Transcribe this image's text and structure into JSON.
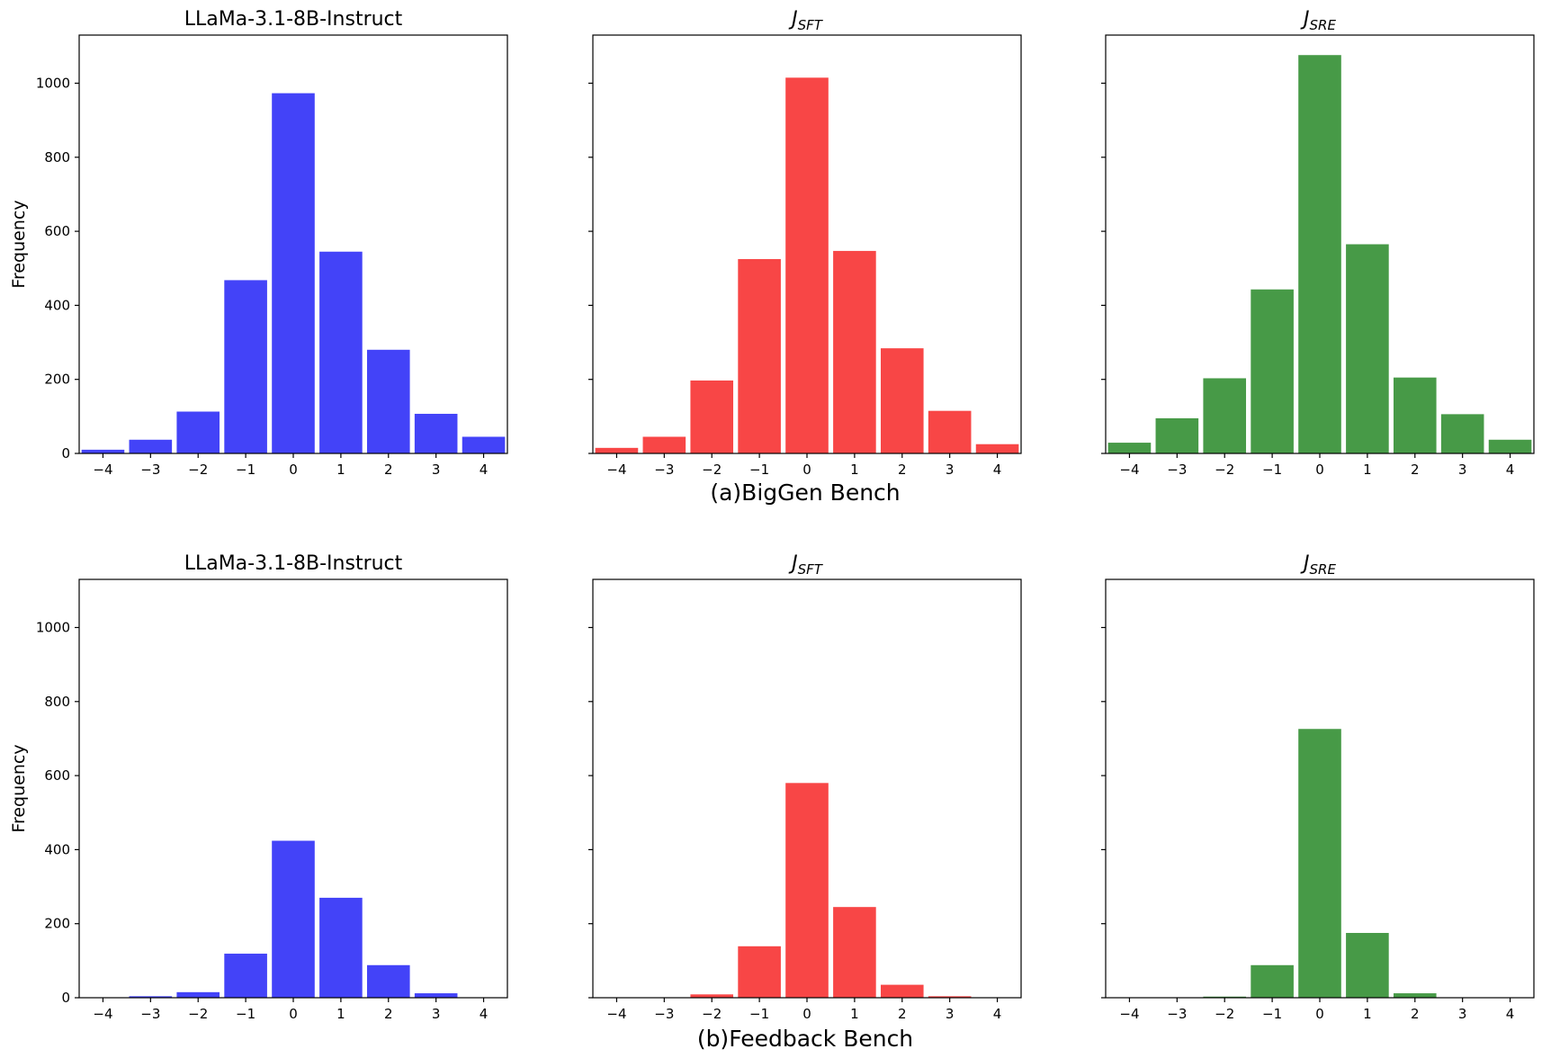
{
  "figure": {
    "rows": [
      {
        "caption": "(a)BigGen Bench"
      },
      {
        "caption": "(b)Feedback Bench"
      }
    ]
  },
  "chart_data": [
    {
      "type": "bar",
      "title": "LLaMa-3.1-8B-Instruct",
      "title_parts": {
        "main": "LLaMa-3.1-8B-Instruct",
        "sub": ""
      },
      "row": "(a)BigGen Bench",
      "color": "#4343f8",
      "categories": [
        "−4",
        "−3",
        "−2",
        "−1",
        "0",
        "1",
        "2",
        "3",
        "4"
      ],
      "x": [
        -4,
        -3,
        -2,
        -1,
        0,
        1,
        2,
        3,
        4
      ],
      "values": [
        10,
        37,
        113,
        468,
        973,
        545,
        280,
        107,
        45
      ],
      "xlabel": "",
      "ylabel": "Frequency",
      "ylim": [
        0,
        1130
      ],
      "yticks": [
        0,
        200,
        400,
        600,
        800,
        1000
      ],
      "show_ytick_labels": true
    },
    {
      "type": "bar",
      "title": "J_SFT",
      "title_parts": {
        "main": "J",
        "sub": "SFT"
      },
      "row": "(a)BigGen Bench",
      "color": "#f84646",
      "categories": [
        "−4",
        "−3",
        "−2",
        "−1",
        "0",
        "1",
        "2",
        "3",
        "4"
      ],
      "x": [
        -4,
        -3,
        -2,
        -1,
        0,
        1,
        2,
        3,
        4
      ],
      "values": [
        15,
        45,
        197,
        525,
        1015,
        547,
        284,
        115,
        25
      ],
      "xlabel": "",
      "ylabel": "",
      "ylim": [
        0,
        1130
      ],
      "yticks": [
        0,
        200,
        400,
        600,
        800,
        1000
      ],
      "show_ytick_labels": false
    },
    {
      "type": "bar",
      "title": "J_SRE",
      "title_parts": {
        "main": "J",
        "sub": "SRE"
      },
      "row": "(a)BigGen Bench",
      "color": "#479a47",
      "categories": [
        "−4",
        "−3",
        "−2",
        "−1",
        "0",
        "1",
        "2",
        "3",
        "4"
      ],
      "x": [
        -4,
        -3,
        -2,
        -1,
        0,
        1,
        2,
        3,
        4
      ],
      "values": [
        29,
        95,
        203,
        443,
        1076,
        565,
        205,
        106,
        37
      ],
      "xlabel": "",
      "ylabel": "",
      "ylim": [
        0,
        1130
      ],
      "yticks": [
        0,
        200,
        400,
        600,
        800,
        1000
      ],
      "show_ytick_labels": false
    },
    {
      "type": "bar",
      "title": "LLaMa-3.1-8B-Instruct",
      "title_parts": {
        "main": "LLaMa-3.1-8B-Instruct",
        "sub": ""
      },
      "row": "(b)Feedback Bench",
      "color": "#4343f8",
      "categories": [
        "−4",
        "−3",
        "−2",
        "−1",
        "0",
        "1",
        "2",
        "3",
        "4"
      ],
      "x": [
        -4,
        -3,
        -2,
        -1,
        0,
        1,
        2,
        3,
        4
      ],
      "values": [
        0,
        4,
        15,
        119,
        424,
        270,
        88,
        12,
        0
      ],
      "xlabel": "",
      "ylabel": "Frequency",
      "ylim": [
        0,
        1130
      ],
      "yticks": [
        0,
        200,
        400,
        600,
        800,
        1000
      ],
      "show_ytick_labels": true
    },
    {
      "type": "bar",
      "title": "J_SFT",
      "title_parts": {
        "main": "J",
        "sub": "SFT"
      },
      "row": "(b)Feedback Bench",
      "color": "#f84646",
      "categories": [
        "−4",
        "−3",
        "−2",
        "−1",
        "0",
        "1",
        "2",
        "3",
        "4"
      ],
      "x": [
        -4,
        -3,
        -2,
        -1,
        0,
        1,
        2,
        3,
        4
      ],
      "values": [
        0,
        0,
        9,
        139,
        580,
        245,
        35,
        4,
        0
      ],
      "xlabel": "",
      "ylabel": "",
      "ylim": [
        0,
        1130
      ],
      "yticks": [
        0,
        200,
        400,
        600,
        800,
        1000
      ],
      "show_ytick_labels": false
    },
    {
      "type": "bar",
      "title": "J_SRE",
      "title_parts": {
        "main": "J",
        "sub": "SRE"
      },
      "row": "(b)Feedback Bench",
      "color": "#479a47",
      "categories": [
        "−4",
        "−3",
        "−2",
        "−1",
        "0",
        "1",
        "2",
        "3",
        "4"
      ],
      "x": [
        -4,
        -3,
        -2,
        -1,
        0,
        1,
        2,
        3,
        4
      ],
      "values": [
        0,
        0,
        3,
        88,
        726,
        175,
        12,
        0,
        0
      ],
      "xlabel": "",
      "ylabel": "",
      "ylim": [
        0,
        1130
      ],
      "yticks": [
        0,
        200,
        400,
        600,
        800,
        1000
      ],
      "show_ytick_labels": false
    }
  ]
}
